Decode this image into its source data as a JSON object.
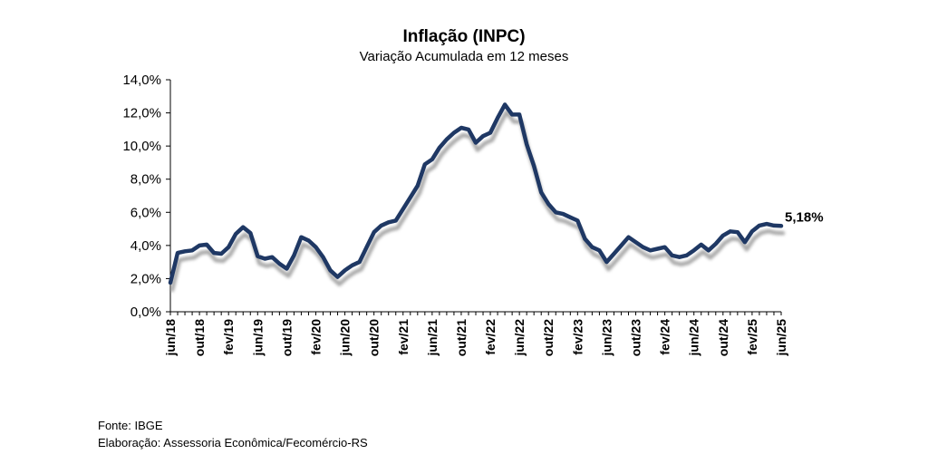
{
  "chart_data": {
    "type": "line",
    "title": "Inflação (INPC)",
    "subtitle": "Variação Acumulada em 12 meses",
    "ylim": [
      0,
      14
    ],
    "y_ticks": [
      "0,0%",
      "2,0%",
      "4,0%",
      "6,0%",
      "8,0%",
      "10,0%",
      "12,0%",
      "14,0%"
    ],
    "x_tick_labels": [
      "jun/18",
      "out/18",
      "fev/19",
      "jun/19",
      "out/19",
      "fev/20",
      "jun/20",
      "out/20",
      "fev/21",
      "jun/21",
      "out/21",
      "fev/22",
      "jun/22",
      "out/22",
      "fev/23",
      "jun/23",
      "out/23",
      "fev/24",
      "jun/24",
      "out/24",
      "fev/25",
      "jun/25"
    ],
    "x": [
      "jun/18",
      "jul/18",
      "ago/18",
      "set/18",
      "out/18",
      "nov/18",
      "dez/18",
      "jan/19",
      "fev/19",
      "mar/19",
      "abr/19",
      "mai/19",
      "jun/19",
      "jul/19",
      "ago/19",
      "set/19",
      "out/19",
      "nov/19",
      "dez/19",
      "jan/20",
      "fev/20",
      "mar/20",
      "abr/20",
      "mai/20",
      "jun/20",
      "jul/20",
      "ago/20",
      "set/20",
      "out/20",
      "nov/20",
      "dez/20",
      "jan/21",
      "fev/21",
      "mar/21",
      "abr/21",
      "mai/21",
      "jun/21",
      "jul/21",
      "ago/21",
      "set/21",
      "out/21",
      "nov/21",
      "dez/21",
      "jan/22",
      "fev/22",
      "mar/22",
      "abr/22",
      "mai/22",
      "jun/22",
      "jul/22",
      "ago/22",
      "set/22",
      "out/22",
      "nov/22",
      "dez/22",
      "jan/23",
      "fev/23",
      "mar/23",
      "abr/23",
      "mai/23",
      "jun/23",
      "jul/23",
      "ago/23",
      "set/23",
      "out/23",
      "nov/23",
      "dez/23",
      "jan/24",
      "fev/24",
      "mar/24",
      "abr/24",
      "mai/24",
      "jun/24",
      "jul/24",
      "ago/24",
      "set/24",
      "out/24",
      "nov/24",
      "dez/24",
      "jan/25",
      "fev/25",
      "mar/25",
      "abr/25",
      "mai/25",
      "jun/25"
    ],
    "series": [
      {
        "values": [
          1.75,
          3.55,
          3.65,
          3.7,
          4.0,
          4.05,
          3.55,
          3.5,
          3.9,
          4.7,
          5.1,
          4.75,
          3.35,
          3.2,
          3.3,
          2.9,
          2.6,
          3.4,
          4.5,
          4.3,
          3.9,
          3.3,
          2.5,
          2.1,
          2.5,
          2.8,
          3.0,
          3.9,
          4.8,
          5.2,
          5.4,
          5.5,
          6.2,
          6.9,
          7.6,
          8.9,
          9.2,
          9.9,
          10.4,
          10.8,
          11.1,
          11.0,
          10.2,
          10.6,
          10.8,
          11.7,
          12.5,
          11.9,
          11.9,
          10.1,
          8.8,
          7.2,
          6.5,
          6.0,
          5.9,
          5.7,
          5.5,
          4.4,
          3.9,
          3.7,
          3.0,
          3.5,
          4.0,
          4.5,
          4.2,
          3.9,
          3.7,
          3.8,
          3.9,
          3.4,
          3.3,
          3.4,
          3.7,
          4.05,
          3.7,
          4.1,
          4.6,
          4.85,
          4.8,
          4.2,
          4.85,
          5.2,
          5.3,
          5.2,
          5.18
        ]
      }
    ],
    "end_label": "5,18%",
    "legend": "none",
    "grid": false,
    "colors": {
      "line": "#1f3864",
      "shadow": "#9a9a9a"
    }
  },
  "footer": {
    "source": "Fonte: IBGE",
    "credit": "Elaboração: Assessoria Econômica/Fecomércio-RS"
  }
}
